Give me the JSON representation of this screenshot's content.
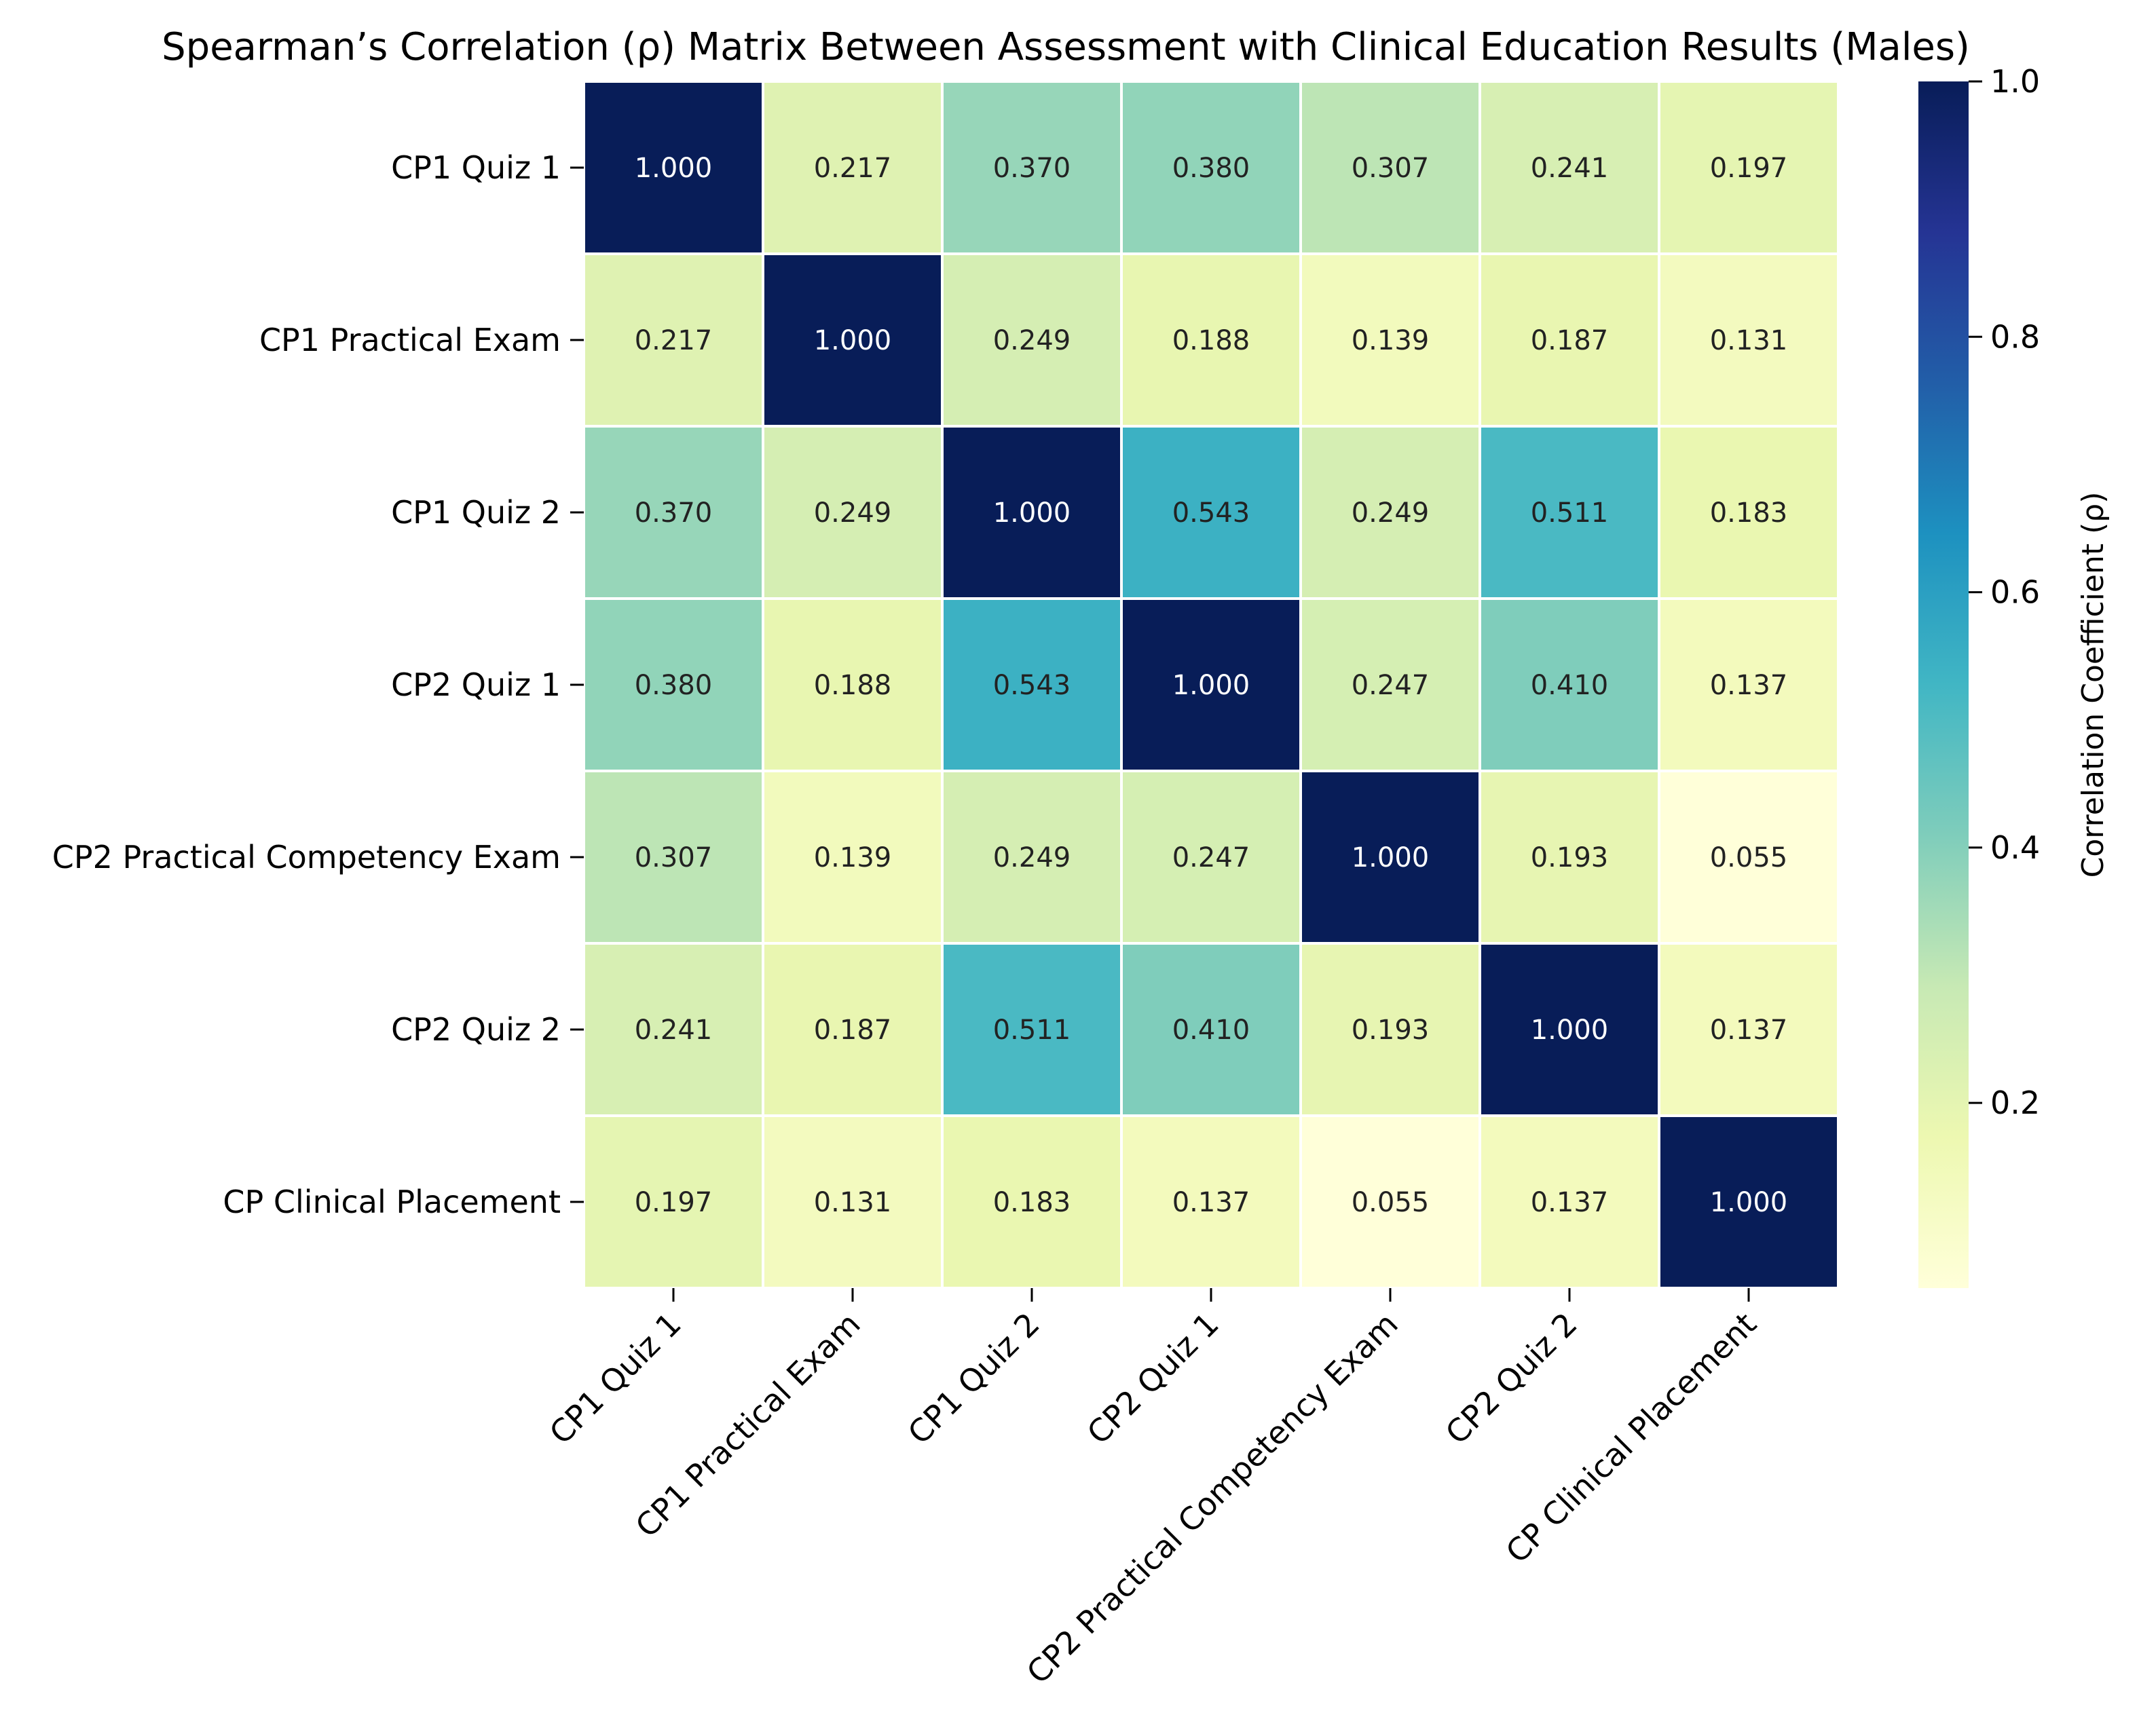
{
  "chart_data": {
    "type": "heatmap",
    "title": "Spearman’s Correlation (ρ) Matrix Between Assessment with Clinical Education Results (Males)",
    "row_labels": [
      "CP1 Quiz 1",
      "CP1 Practical Exam",
      "CP1 Quiz 2",
      "CP2 Quiz 1",
      "CP2 Practical Competency Exam",
      "CP2 Quiz 2",
      "CP Clinical Placement"
    ],
    "col_labels": [
      "CP1 Quiz 1",
      "CP1 Practical Exam",
      "CP1 Quiz 2",
      "CP2 Quiz 1",
      "CP2 Practical Competency Exam",
      "CP2 Quiz 2",
      "CP Clinical Placement"
    ],
    "values": [
      [
        1.0,
        0.217,
        0.37,
        0.38,
        0.307,
        0.241,
        0.197
      ],
      [
        0.217,
        1.0,
        0.249,
        0.188,
        0.139,
        0.187,
        0.131
      ],
      [
        0.37,
        0.249,
        1.0,
        0.543,
        0.249,
        0.511,
        0.183
      ],
      [
        0.38,
        0.188,
        0.543,
        1.0,
        0.247,
        0.41,
        0.137
      ],
      [
        0.307,
        0.139,
        0.249,
        0.247,
        1.0,
        0.193,
        0.055
      ],
      [
        0.241,
        0.187,
        0.511,
        0.41,
        0.193,
        1.0,
        0.137
      ],
      [
        0.197,
        0.131,
        0.183,
        0.137,
        0.055,
        0.137,
        1.0
      ]
    ],
    "value_format": "0.000",
    "colormap": "YlGnBu",
    "colorbar": {
      "label": "Correlation Coefficient (ρ)",
      "range": [
        0.055,
        1.0
      ],
      "ticks": [
        0.2,
        0.4,
        0.6,
        0.8,
        1.0
      ],
      "tick_labels": [
        "0.2",
        "0.4",
        "0.6",
        "0.8",
        "1.0"
      ]
    },
    "colors": [
      "#ffffd9",
      "#edf8b1",
      "#c7e9b4",
      "#7fcdbb",
      "#41b6c4",
      "#1d91c0",
      "#225ea8",
      "#253494",
      "#081d58"
    ]
  }
}
